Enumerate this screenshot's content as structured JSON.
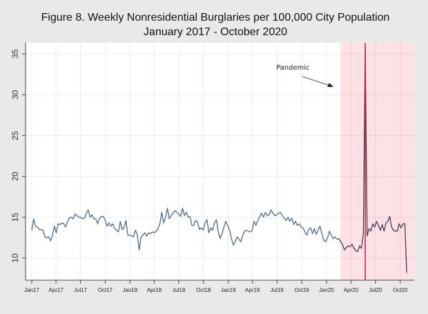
{
  "chart_data": {
    "type": "line",
    "title": "Figure 8. Weekly Nonresidential Burglaries per 100,000 City Population",
    "subtitle": "January 2017 - October 2020",
    "xlabel": "",
    "ylabel": "",
    "ylim": [
      7.9,
      36.5
    ],
    "yticks": [
      10,
      15,
      20,
      25,
      30,
      35
    ],
    "xticks": [
      {
        "label": "Jan17",
        "date": "2017-01-01"
      },
      {
        "label": "Apr17",
        "date": "2017-04-01"
      },
      {
        "label": "Jul17",
        "date": "2017-07-01"
      },
      {
        "label": "Oct17",
        "date": "2017-10-01"
      },
      {
        "label": "Jan18",
        "date": "2018-01-01"
      },
      {
        "label": "Apr18",
        "date": "2018-04-01"
      },
      {
        "label": "Jul18",
        "date": "2018-07-01"
      },
      {
        "label": "Oct18",
        "date": "2018-10-01"
      },
      {
        "label": "Jan19",
        "date": "2019-01-01"
      },
      {
        "label": "Apr19",
        "date": "2019-04-01"
      },
      {
        "label": "Jul19",
        "date": "2019-07-01"
      },
      {
        "label": "Oct19",
        "date": "2019-10-01"
      },
      {
        "label": "Jan20",
        "date": "2020-01-01"
      },
      {
        "label": "Apr20",
        "date": "2020-04-01"
      },
      {
        "label": "Jul20",
        "date": "2020-07-01"
      },
      {
        "label": "Oct20",
        "date": "2020-10-01"
      }
    ],
    "grid": true,
    "first_week": "2017-01-01",
    "interval": "weekly",
    "values": [
      13.4,
      14.8,
      13.9,
      13.8,
      13.5,
      13.5,
      13.4,
      12.6,
      12.5,
      12.6,
      12.1,
      12.8,
      13.9,
      13.1,
      14.2,
      14.1,
      14.3,
      14.2,
      13.8,
      14.5,
      14.9,
      15.0,
      14.8,
      15.4,
      15.2,
      15.0,
      15.0,
      14.8,
      14.9,
      15.5,
      15.9,
      15.0,
      15.3,
      14.8,
      14.8,
      14.2,
      14.9,
      15.1,
      15.1,
      14.6,
      13.9,
      14.3,
      13.9,
      14.2,
      13.6,
      13.4,
      13.2,
      14.5,
      13.5,
      13.7,
      14.6,
      12.8,
      12.8,
      12.7,
      12.6,
      13.4,
      12.9,
      11.0,
      12.6,
      12.8,
      13.1,
      12.7,
      13.1,
      13.0,
      13.2,
      13.1,
      13.3,
      13.6,
      14.2,
      15.6,
      14.3,
      15.0,
      16.1,
      14.8,
      15.2,
      15.5,
      15.8,
      15.6,
      15.4,
      15.1,
      16.1,
      15.2,
      15.6,
      15.0,
      15.1,
      14.0,
      14.0,
      14.6,
      14.4,
      13.5,
      13.7,
      13.4,
      14.3,
      14.7,
      13.1,
      13.7,
      13.4,
      14.3,
      14.7,
      13.2,
      12.4,
      13.0,
      13.8,
      14.5,
      14.0,
      13.4,
      12.4,
      11.6,
      12.0,
      12.6,
      12.3,
      12.0,
      12.8,
      13.3,
      13.4,
      13.3,
      13.2,
      13.4,
      14.5,
      14.0,
      14.6,
      15.1,
      15.5,
      15.0,
      15.6,
      15.2,
      15.3,
      15.9,
      15.5,
      15.2,
      15.3,
      15.5,
      15.6,
      15.2,
      14.9,
      14.6,
      15.0,
      14.5,
      14.9,
      14.1,
      14.5,
      14.0,
      14.2,
      13.8,
      13.7,
      13.2,
      12.8,
      13.5,
      13.7,
      13.0,
      13.6,
      12.9,
      13.4,
      13.9,
      13.0,
      12.2,
      12.0,
      12.5,
      13.3,
      12.8,
      12.4,
      12.6,
      12.3,
      12.4,
      12.0,
      11.6,
      11.0,
      11.3,
      11.5,
      11.4,
      11.7,
      11.2,
      10.9,
      10.8,
      11.5,
      11.2,
      13.0,
      35.9,
      12.7,
      13.6,
      13.3,
      14.2,
      13.8,
      14.5,
      14.0,
      13.4,
      14.1,
      13.3,
      14.3,
      14.5,
      15.1,
      13.8,
      13.4,
      13.3,
      13.3,
      14.2,
      13.7,
      14.2,
      14.2,
      8.2
    ],
    "shaded_region": {
      "label": "Pandemic",
      "start": "2020-02-22",
      "end": "2020-10-31",
      "color": "#fde1e4"
    },
    "reference_line": {
      "date": "2020-05-24",
      "color": "#d41f2e"
    },
    "annotation": "Pandemic",
    "colors": {
      "line_pre": "#4a6a8c",
      "line_pandemic": "#3a3f5c",
      "background": "#e9e9e9",
      "plot": "#ffffff",
      "grid": "#ececec"
    }
  }
}
